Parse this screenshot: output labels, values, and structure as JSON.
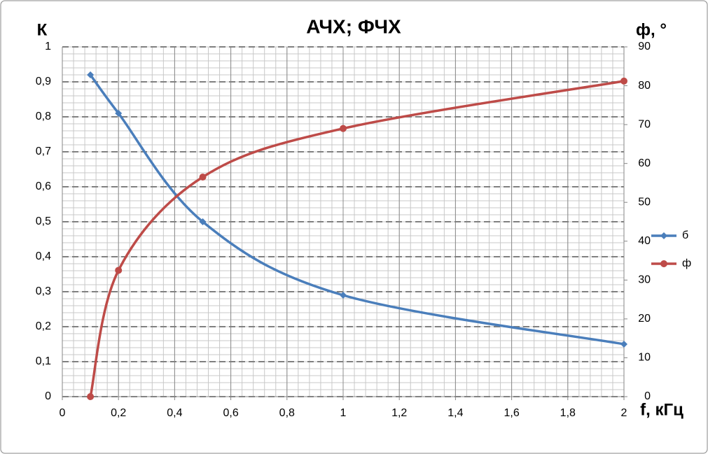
{
  "chart_data": {
    "type": "line",
    "title": "АЧХ; ФЧХ",
    "y_label": "К",
    "y2_label": "ф, °",
    "x_label": "f, кГц",
    "x": [
      0.1,
      0.2,
      0.5,
      1,
      2
    ],
    "series": [
      {
        "name": "б",
        "color": "#4a7ebb",
        "marker": "diamond",
        "values": [
          0.92,
          0.81,
          0.5,
          0.29,
          0.15
        ]
      },
      {
        "name": "ф",
        "color": "#be4b48",
        "marker": "circle",
        "axis": "y2",
        "values": [
          0,
          32.5,
          56.5,
          69,
          81.2
        ]
      }
    ],
    "xlim": [
      0,
      2
    ],
    "xticks": [
      0,
      {
        "value": 0.2,
        "label": "0,2"
      },
      {
        "value": 0.4,
        "label": "0,4"
      },
      {
        "value": 0.6,
        "label": "0,6"
      },
      {
        "value": 0.8,
        "label": "0,8"
      },
      1,
      {
        "value": 1.2,
        "label": "1,2"
      },
      {
        "value": 1.4,
        "label": "1,4"
      },
      {
        "value": 1.6,
        "label": "1,6"
      },
      {
        "value": 1.8,
        "label": "1,8"
      },
      2
    ],
    "ylim": [
      0,
      1
    ],
    "yticks": [
      0,
      {
        "value": 0.1,
        "label": "0,1"
      },
      {
        "value": 0.2,
        "label": "0,2"
      },
      {
        "value": 0.3,
        "label": "0,3"
      },
      {
        "value": 0.4,
        "label": "0,4"
      },
      {
        "value": 0.5,
        "label": "0,5"
      },
      {
        "value": 0.6,
        "label": "0,6"
      },
      {
        "value": 0.7,
        "label": "0,7"
      },
      {
        "value": 0.8,
        "label": "0,8"
      },
      {
        "value": 0.9,
        "label": "0,9"
      },
      1
    ],
    "y2lim": [
      0,
      90
    ],
    "y2ticks": [
      0,
      10,
      20,
      30,
      40,
      50,
      60,
      70,
      80,
      90
    ],
    "grid": true,
    "minor_grid": true,
    "smooth": true,
    "legend": "right"
  }
}
